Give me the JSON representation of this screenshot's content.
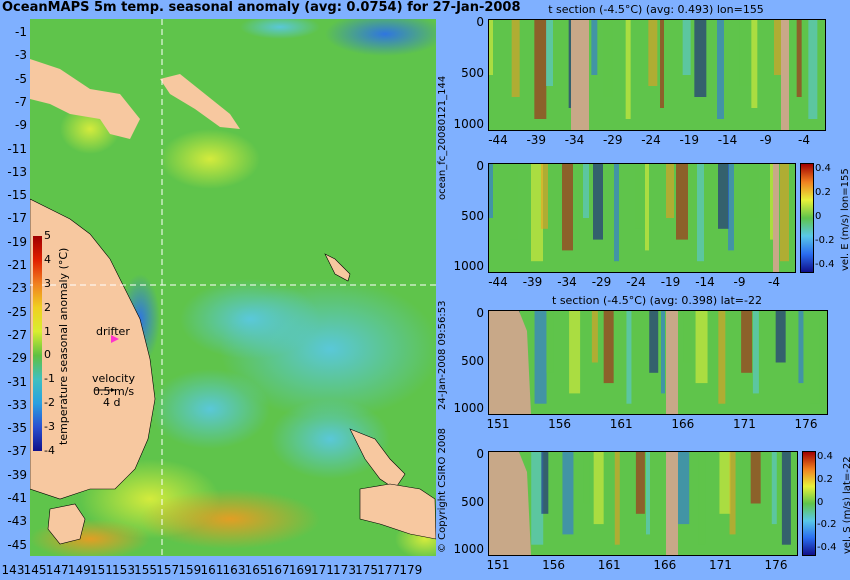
{
  "main_title": "OceanMAPS 5m temp. seasonal anomaly (avg: 0.0754) for 27-Jan-2008",
  "side_labels": {
    "forecast_id": "ocean_fc_20080121_144",
    "run_time": "24-Jan-2008 09:56:53",
    "copyright": "© Copyright CSIRO 2008"
  },
  "map": {
    "y_ticks": [
      "-1",
      "-3",
      "-5",
      "-7",
      "-9",
      "-11",
      "-13",
      "-15",
      "-17",
      "-19",
      "-21",
      "-23",
      "-25",
      "-27",
      "-29",
      "-31",
      "-33",
      "-35",
      "-37",
      "-39",
      "-41",
      "-43",
      "-45"
    ],
    "x_ticks": [
      "143",
      "145",
      "147",
      "149",
      "151",
      "153",
      "155",
      "157",
      "159",
      "161",
      "163",
      "165",
      "167",
      "169",
      "171",
      "173",
      "175",
      "177",
      "179"
    ],
    "colorbar_ticks": [
      "5",
      "4",
      "3",
      "2",
      "1",
      "0",
      "-1",
      "-2",
      "-3",
      "-4"
    ],
    "colorbar_label": "temperature seasonal anomaly (°C)",
    "drifter_label": "drifter",
    "velocity_label": "velocity",
    "velocity_scale": "0.5 m/s",
    "velocity_days": "4 d",
    "colors": {
      "land": "#f7c8a0",
      "ocean_base": "#5fc44b",
      "crosshair": "#ffffff",
      "drifter": "#ff33cc"
    }
  },
  "panels": [
    {
      "id": "t-section-lon",
      "title": "t section (-4.5°C) (avg: 0.493) lon=155",
      "x_ticks": [
        "-44",
        "-39",
        "-34",
        "-29",
        "-24",
        "-19",
        "-14",
        "-9",
        "-4"
      ],
      "y_ticks": [
        "0",
        "500",
        "1000"
      ],
      "colorbar": null
    },
    {
      "id": "vel-e-lon",
      "title": "",
      "x_ticks": [
        "-44",
        "-39",
        "-34",
        "-29",
        "-24",
        "-19",
        "-14",
        "-9",
        "-4"
      ],
      "y_ticks": [
        "0",
        "500",
        "1000"
      ],
      "colorbar": {
        "label": "vel. E (m/s) lon=155",
        "ticks": [
          "0.4",
          "0.2",
          "0",
          "-0.2",
          "-0.4"
        ]
      }
    },
    {
      "id": "t-section-lat",
      "title": "t section (-4.5°C) (avg: 0.398) lat=-22",
      "x_ticks": [
        "151",
        "156",
        "161",
        "166",
        "171",
        "176"
      ],
      "y_ticks": [
        "0",
        "500",
        "1000"
      ],
      "colorbar": null
    },
    {
      "id": "vel-s-lat",
      "title": "",
      "x_ticks": [
        "151",
        "156",
        "161",
        "166",
        "171",
        "176"
      ],
      "y_ticks": [
        "0",
        "500",
        "1000"
      ],
      "colorbar": {
        "label": "vel. S (m/s) lat=-22",
        "ticks": [
          "0.4",
          "0.2",
          "0",
          "-0.2",
          "-0.4"
        ]
      }
    }
  ]
}
